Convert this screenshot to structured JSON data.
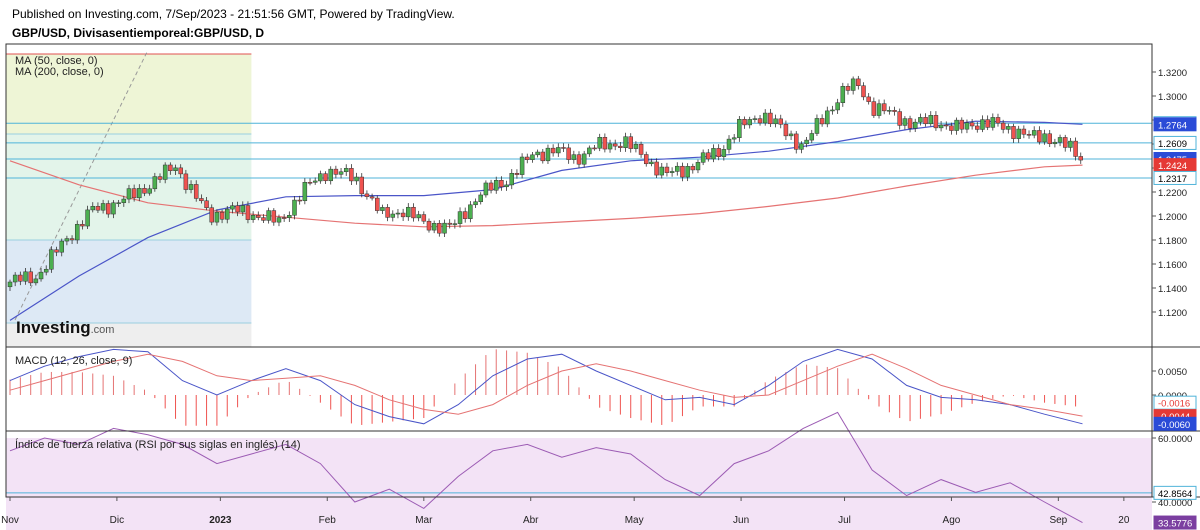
{
  "header": {
    "published": "Published on Investing.com, 7/Sep/2023 - 21:51:56 GMT, Powered by TradingView.",
    "symbol": "GBP/USD, Divisasentiemporeal:GBP/USD, D"
  },
  "logo": {
    "brand": "Investing",
    "suffix": ".com"
  },
  "price_panel": {
    "legend": [
      "MA (50, close, 0)",
      "MA (200, close, 0)"
    ],
    "y_ticks": [
      "1.3200",
      "1.3000",
      "1.2800",
      "1.2600",
      "1.2400",
      "1.2200",
      "1.2000",
      "1.1800",
      "1.1600",
      "1.1400",
      "1.1200"
    ],
    "y_tick_values": [
      1.32,
      1.3,
      1.28,
      1.26,
      1.24,
      1.22,
      1.2,
      1.18,
      1.16,
      1.14,
      1.12
    ],
    "hlines": [
      1.2773,
      1.2609,
      1.2475,
      1.2317
    ],
    "price_labels": [
      {
        "text": "1.2773",
        "value": 1.2773,
        "bg": "#ffffff",
        "fg": "#000000"
      },
      {
        "text": "1.2764",
        "value": 1.2764,
        "bg": "#2a4bd7",
        "fg": "#ffffff"
      },
      {
        "text": "1.2609",
        "value": 1.2609,
        "bg": "#ffffff",
        "fg": "#000000"
      },
      {
        "text": "1.2475",
        "value": 1.2475,
        "bg": "#2a4bd7",
        "fg": "#ffffff"
      },
      {
        "text": "1.2424",
        "value": 1.2424,
        "bg": "#e53935",
        "fg": "#ffffff"
      },
      {
        "text": "1.2317",
        "value": 1.2317,
        "bg": "#ffffff",
        "fg": "#000000"
      }
    ]
  },
  "macd_panel": {
    "legend": "MACD (12, 26, close, 9)",
    "y_ticks": [
      "0.0050",
      "0.0000"
    ],
    "y_tick_values": [
      0.005,
      0.0
    ],
    "labels": [
      {
        "text": "-0.0016",
        "value": -0.0016,
        "bg": "#ffffff",
        "fg": "#e53935"
      },
      {
        "text": "-0.0044",
        "value": -0.0044,
        "bg": "#e53935",
        "fg": "#ffffff"
      },
      {
        "text": "-0.0060",
        "value": -0.006,
        "bg": "#2a4bd7",
        "fg": "#ffffff"
      }
    ]
  },
  "rsi_panel": {
    "legend": "Índice de fuerza relativa (RSI por sus siglas en inglés) (14)",
    "y_ticks": [
      "60.0000",
      "40.0000"
    ],
    "y_tick_values": [
      60,
      40
    ],
    "labels": [
      {
        "text": "42.8564",
        "value": 42.8564,
        "bg": "#ffffff",
        "fg": "#000000"
      },
      {
        "text": "33.5776",
        "value": 33.5776,
        "bg": "#7b3fa0",
        "fg": "#ffffff"
      }
    ]
  },
  "time_axis": {
    "labels": [
      "Nov",
      "Dic",
      "2023",
      "Feb",
      "Mar",
      "Abr",
      "May",
      "Jun",
      "Jul",
      "Ago",
      "Sep",
      "20"
    ],
    "label_days": [
      0,
      31,
      61,
      92,
      120,
      151,
      181,
      212,
      242,
      273,
      304,
      323
    ]
  },
  "colors": {
    "up": "#4caf50",
    "down": "#ef5350",
    "ma50": "#4a55c8",
    "ma200": "#e57373",
    "hline": "#4fb3d9",
    "macd": "#4a55c8",
    "signal": "#e57373",
    "rsi": "#9c5cb4",
    "rsi_band": "#f3e3f6",
    "border": "#333333"
  },
  "chart_data": {
    "type": "candlestick",
    "symbol": "GBP/USD",
    "timeframe": "D",
    "x_range": [
      "Nov 2022",
      "Sep 2023"
    ],
    "ylim": [
      1.11,
      1.335
    ],
    "grid": false,
    "series": [
      {
        "name": "MA (50, close, 0)",
        "x": [
          0,
          20,
          40,
          60,
          80,
          100,
          120,
          140,
          160,
          180,
          200,
          220,
          240,
          260,
          280,
          300,
          311
        ],
        "y": [
          1.113,
          1.15,
          1.182,
          1.205,
          1.216,
          1.217,
          1.217,
          1.222,
          1.238,
          1.246,
          1.249,
          1.254,
          1.262,
          1.272,
          1.279,
          1.278,
          1.2764
        ]
      },
      {
        "name": "MA (200, close, 0)",
        "x": [
          0,
          20,
          40,
          60,
          80,
          100,
          120,
          140,
          160,
          180,
          200,
          220,
          240,
          260,
          280,
          300,
          311
        ],
        "y": [
          1.246,
          1.226,
          1.211,
          1.204,
          1.199,
          1.194,
          1.191,
          1.192,
          1.195,
          1.198,
          1.202,
          1.208,
          1.215,
          1.225,
          1.234,
          1.241,
          1.2424
        ]
      }
    ],
    "macd": {
      "x": [
        0,
        10,
        20,
        30,
        40,
        50,
        60,
        70,
        80,
        90,
        100,
        110,
        120,
        130,
        140,
        150,
        160,
        170,
        180,
        190,
        200,
        210,
        220,
        230,
        240,
        250,
        260,
        270,
        280,
        290,
        300,
        311
      ],
      "macd": [
        0.003,
        0.006,
        0.008,
        0.0095,
        0.009,
        0.003,
        0.0,
        0.003,
        0.0055,
        0.003,
        -0.002,
        -0.0045,
        -0.006,
        -0.002,
        0.004,
        0.0075,
        0.0085,
        0.005,
        0.002,
        -0.001,
        -0.0005,
        -0.002,
        0.002,
        0.007,
        0.0095,
        0.0075,
        0.002,
        -0.0005,
        -0.001,
        -0.002,
        -0.004,
        -0.006
      ],
      "signal": [
        0.001,
        0.003,
        0.005,
        0.007,
        0.0085,
        0.007,
        0.004,
        0.003,
        0.0035,
        0.004,
        0.002,
        -0.001,
        -0.003,
        -0.004,
        -0.002,
        0.002,
        0.005,
        0.0065,
        0.005,
        0.003,
        0.001,
        -0.0005,
        0.0,
        0.003,
        0.006,
        0.0085,
        0.0055,
        0.002,
        0.0,
        -0.002,
        -0.003,
        -0.0044
      ],
      "last_hist": -0.0016
    },
    "rsi": {
      "x": [
        0,
        10,
        20,
        30,
        40,
        50,
        60,
        70,
        80,
        90,
        100,
        110,
        120,
        130,
        140,
        150,
        160,
        170,
        180,
        190,
        200,
        210,
        220,
        230,
        240,
        250,
        260,
        270,
        280,
        290,
        300,
        311
      ],
      "y": [
        56,
        60,
        58,
        63,
        61,
        58,
        52,
        55,
        58,
        52,
        40,
        44,
        38,
        48,
        56,
        58,
        54,
        57,
        55,
        47,
        42,
        52,
        56,
        63,
        68,
        50,
        42,
        47,
        43,
        46,
        40,
        33.5776
      ]
    }
  }
}
